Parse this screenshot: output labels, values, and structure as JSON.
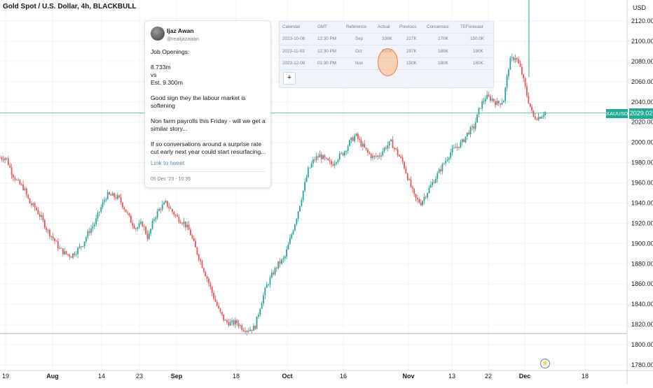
{
  "title": "Gold Spot / U.S. Dollar, 4h, BLACKBULL",
  "currency": "USD",
  "symbol": "XAUUSD",
  "last_price": "2029.02",
  "colors": {
    "up": "#26a69a",
    "down": "#ef5350",
    "price_line": "#22ab94",
    "background": "#ffffff",
    "grid": "#f0f3fa"
  },
  "tweet": {
    "name": "Ijaz Awan",
    "handle": "@realijazawan",
    "body": "Job Openings:\n\n8.733m\nvs\nEst. 9.300m\n\nGood sign they the labour market is softening\n\nNon farm payrolls this Friday - will we get a similar story...\n\nIf so conversations around a surprise rate cut early next year could start resurfacing...",
    "link_label": "Link to tweet",
    "date": "05 Dec '23 - 10:35"
  },
  "calendar": {
    "headers": [
      "Calendar",
      "GMT",
      "Reference",
      "Actual",
      "Previous",
      "Consensus",
      "TEForecast"
    ],
    "rows": [
      [
        "2023-10-06",
        "12:30 PM",
        "Sep",
        "336K",
        "227K",
        "170K",
        "150.0K"
      ],
      [
        "2023-11-03",
        "12:30 PM",
        "Oct",
        "150K",
        "297K",
        "180K",
        "190K"
      ],
      [
        "2023-12-08",
        "01:30 PM",
        "Nov",
        "",
        "150K",
        "180K",
        "160K"
      ]
    ],
    "add_label": "+"
  },
  "chart_data": {
    "type": "candlestick",
    "ylim": [
      1775,
      2140
    ],
    "y_ticks": [
      "2120.00",
      "2100.00",
      "2080.00",
      "2060.00",
      "2040.00",
      "2020.00",
      "2000.00",
      "1980.00",
      "1960.00",
      "1940.00",
      "1920.00",
      "1900.00",
      "1880.00",
      "1860.00",
      "1840.00",
      "1820.00",
      "1800.00",
      "1780.00"
    ],
    "x_ticks": [
      "19",
      "Aug",
      "14",
      "23",
      "Sep",
      "18",
      "Oct",
      "16",
      "Nov",
      "13",
      "22",
      "Dec",
      "18"
    ],
    "price_line": 2029.02,
    "support_line": 1811,
    "path_points": [
      [
        1969,
        1985
      ],
      [
        1974,
        1985
      ],
      [
        1983,
        1970
      ],
      [
        1993,
        1960
      ],
      [
        1998,
        1955
      ],
      [
        2010,
        1940
      ],
      [
        2016,
        1935
      ],
      [
        2025,
        1925
      ],
      [
        2035,
        1913
      ],
      [
        2039,
        1905
      ],
      [
        2048,
        1895
      ],
      [
        2052,
        1890
      ],
      [
        2057,
        1888
      ],
      [
        2061,
        1893
      ],
      [
        2065,
        1900
      ],
      [
        2073,
        1912
      ],
      [
        2078,
        1920
      ],
      [
        2087,
        1935
      ],
      [
        2095,
        1948
      ],
      [
        2099,
        1947
      ],
      [
        2101,
        1945
      ],
      [
        2108,
        1935
      ],
      [
        2116,
        1923
      ],
      [
        2125,
        1915
      ],
      [
        2131,
        1920
      ],
      [
        2136,
        1905
      ],
      [
        2140,
        1925
      ],
      [
        2144,
        1935
      ],
      [
        2150,
        1940
      ],
      [
        2153,
        1932
      ],
      [
        2160,
        1925
      ],
      [
        2167,
        1921
      ],
      [
        2171,
        1912
      ],
      [
        2176,
        1895
      ],
      [
        2180,
        1880
      ],
      [
        2184,
        1865
      ],
      [
        2189,
        1848
      ],
      [
        2193,
        1833
      ],
      [
        2197,
        1823
      ],
      [
        2202,
        1821
      ],
      [
        2206,
        1822
      ],
      [
        2210,
        1816
      ],
      [
        2213,
        1815
      ],
      [
        2215,
        1817
      ],
      [
        2219,
        1840
      ],
      [
        2225,
        1858
      ],
      [
        2229,
        1870
      ],
      [
        2236,
        1880
      ],
      [
        2239,
        1885
      ],
      [
        2243,
        1905
      ],
      [
        2246,
        1925
      ],
      [
        2250,
        1948
      ],
      [
        2255,
        1972
      ],
      [
        2259,
        1983
      ],
      [
        2265,
        1987
      ],
      [
        2270,
        1982
      ],
      [
        2274,
        1978
      ],
      [
        2278,
        1985
      ],
      [
        2283,
        1990
      ],
      [
        2289,
        2000
      ],
      [
        2292,
        2007
      ],
      [
        2297,
        1998
      ],
      [
        2301,
        1990
      ],
      [
        2309,
        1985
      ],
      [
        2313,
        1987
      ],
      [
        2317,
        1995
      ],
      [
        2320,
        2000
      ],
      [
        2323,
        1990
      ],
      [
        2327,
        1980
      ],
      [
        2331,
        1962
      ],
      [
        2337,
        1945
      ],
      [
        2341,
        1940
      ],
      [
        2346,
        1950
      ],
      [
        2350,
        1960
      ],
      [
        2356,
        1970
      ],
      [
        2360,
        1980
      ],
      [
        2363,
        1990
      ],
      [
        2369,
        1995
      ],
      [
        2372,
        2000
      ],
      [
        2376,
        2010
      ],
      [
        2380,
        2015
      ],
      [
        2384,
        2035
      ],
      [
        2390,
        2045
      ],
      [
        2395,
        2043
      ],
      [
        2399,
        2038
      ],
      [
        2403,
        2042
      ],
      [
        2407,
        2080
      ],
      [
        2410,
        2085
      ],
      [
        2413,
        2070
      ],
      [
        2416,
        2045
      ],
      [
        2419,
        2025
      ],
      [
        2423,
        2025
      ],
      [
        2428,
        2030
      ]
    ]
  }
}
